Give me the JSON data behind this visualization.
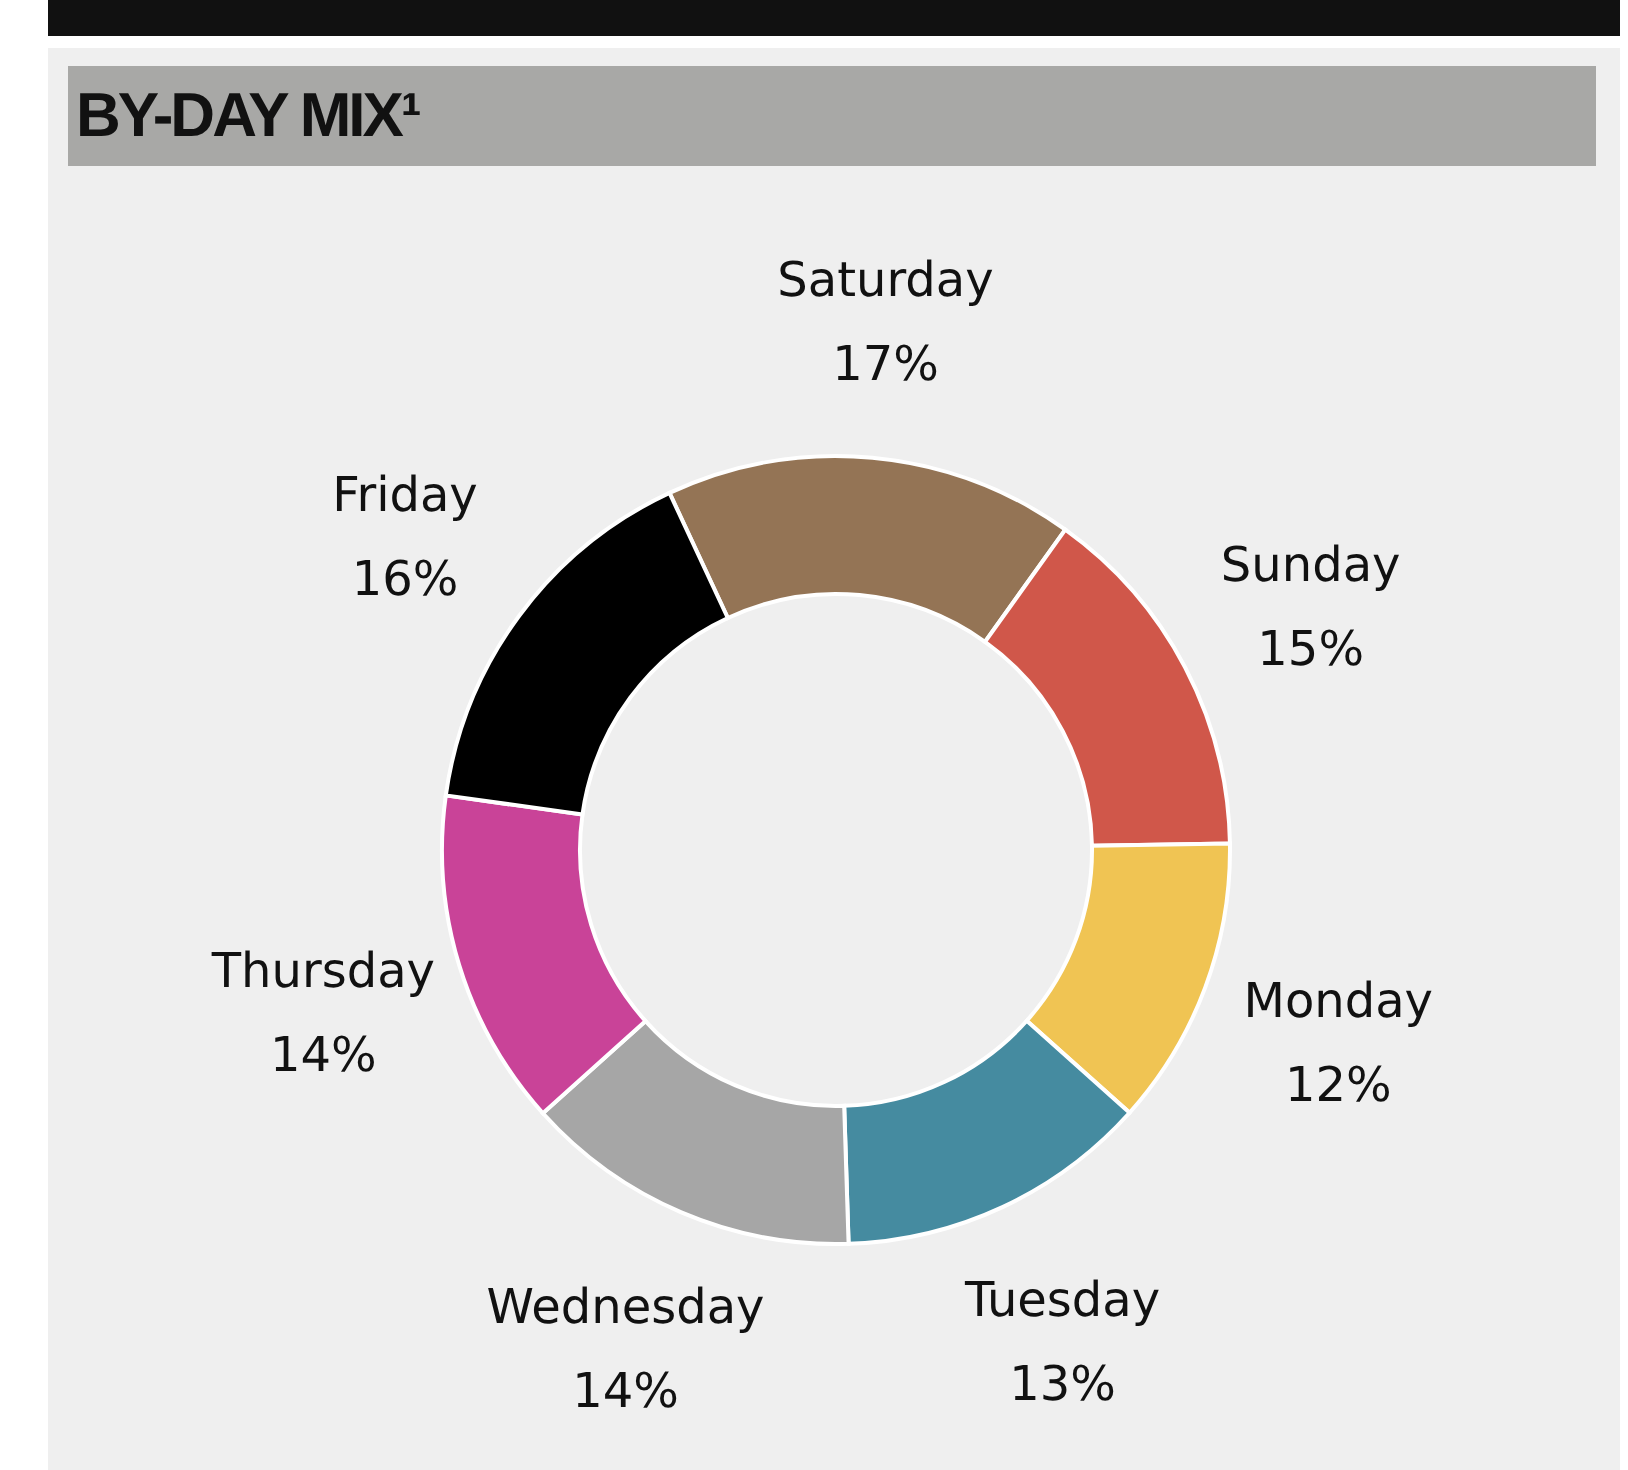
{
  "chart_data": {
    "type": "donut",
    "title": "BY-DAY MIX¹",
    "categories": [
      "Saturday",
      "Sunday",
      "Monday",
      "Tuesday",
      "Wednesday",
      "Thursday",
      "Friday"
    ],
    "values": [
      17,
      15,
      12,
      13,
      14,
      14,
      16
    ],
    "value_labels": [
      "17%",
      "15%",
      "12%",
      "13%",
      "14%",
      "14%",
      "16%"
    ],
    "colors": [
      "#947455",
      "#d0574a",
      "#f0c453",
      "#458ba0",
      "#a6a6a6",
      "#c94398",
      "#000000"
    ],
    "legend": false
  }
}
